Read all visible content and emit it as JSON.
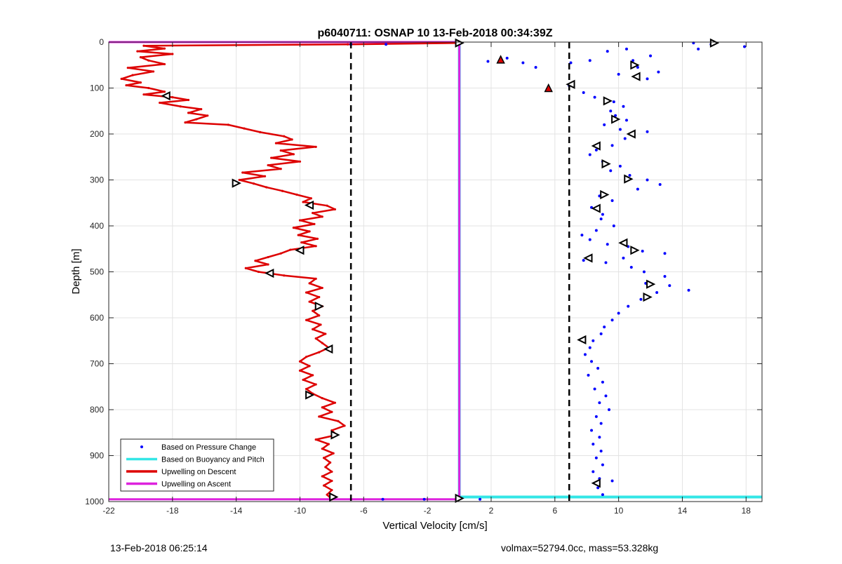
{
  "chart_data": {
    "type": "scatter",
    "title": "p6040711: OSNAP 10 13-Feb-2018 00:34:39Z",
    "xlabel": "Vertical Velocity [cm/s]",
    "ylabel": "Depth [m]",
    "xlim": [
      -22,
      19
    ],
    "ylim": [
      0,
      1000
    ],
    "y_reversed": true,
    "grid": true,
    "xticks": [
      -22,
      -18,
      -14,
      -10,
      -6,
      -2,
      2,
      6,
      10,
      14,
      18
    ],
    "yticks": [
      0,
      100,
      200,
      300,
      400,
      500,
      600,
      700,
      800,
      900,
      1000
    ],
    "legend_position": "bottom-left",
    "reference_lines_x": [
      -6.8,
      6.9
    ],
    "series": [
      {
        "name": "Based on Pressure Change",
        "color": "#0000ff",
        "style": "dots",
        "points": [
          [
            17.9,
            10
          ],
          [
            15.0,
            15
          ],
          [
            15.8,
            5
          ],
          [
            14.7,
            2
          ],
          [
            10.5,
            15
          ],
          [
            12.0,
            30
          ],
          [
            10.9,
            40
          ],
          [
            11.2,
            55
          ],
          [
            12.5,
            65
          ],
          [
            10.0,
            70
          ],
          [
            11.8,
            80
          ],
          [
            9.3,
            20
          ],
          [
            8.2,
            40
          ],
          [
            7.0,
            45
          ],
          [
            4.0,
            45
          ],
          [
            1.8,
            42
          ],
          [
            3.0,
            35
          ],
          [
            4.8,
            55
          ],
          [
            6.9,
            95
          ],
          [
            7.8,
            110
          ],
          [
            8.5,
            120
          ],
          [
            9.7,
            130
          ],
          [
            10.3,
            140
          ],
          [
            9.5,
            150
          ],
          [
            9.8,
            160
          ],
          [
            10.5,
            170
          ],
          [
            9.1,
            180
          ],
          [
            10.1,
            190
          ],
          [
            11.8,
            195
          ],
          [
            10.4,
            210
          ],
          [
            9.6,
            225
          ],
          [
            8.6,
            235
          ],
          [
            8.2,
            245
          ],
          [
            9.0,
            260
          ],
          [
            10.1,
            270
          ],
          [
            9.5,
            280
          ],
          [
            10.7,
            290
          ],
          [
            11.8,
            300
          ],
          [
            12.6,
            310
          ],
          [
            11.2,
            320
          ],
          [
            8.8,
            335
          ],
          [
            9.6,
            345
          ],
          [
            8.3,
            360
          ],
          [
            9.0,
            375
          ],
          [
            8.9,
            385
          ],
          [
            9.7,
            400
          ],
          [
            8.6,
            410
          ],
          [
            7.7,
            420
          ],
          [
            8.2,
            430
          ],
          [
            9.3,
            440
          ],
          [
            10.6,
            445
          ],
          [
            11.5,
            455
          ],
          [
            12.9,
            460
          ],
          [
            10.3,
            470
          ],
          [
            7.8,
            475
          ],
          [
            9.2,
            480
          ],
          [
            10.8,
            490
          ],
          [
            11.6,
            500
          ],
          [
            12.9,
            510
          ],
          [
            11.7,
            525
          ],
          [
            13.2,
            530
          ],
          [
            14.4,
            540
          ],
          [
            12.4,
            545
          ],
          [
            11.4,
            560
          ],
          [
            10.6,
            575
          ],
          [
            10.0,
            590
          ],
          [
            9.6,
            605
          ],
          [
            9.1,
            620
          ],
          [
            8.9,
            635
          ],
          [
            8.4,
            650
          ],
          [
            8.2,
            665
          ],
          [
            7.9,
            680
          ],
          [
            8.3,
            695
          ],
          [
            8.7,
            710
          ],
          [
            8.1,
            725
          ],
          [
            9.0,
            740
          ],
          [
            8.5,
            755
          ],
          [
            9.2,
            770
          ],
          [
            8.8,
            785
          ],
          [
            9.4,
            800
          ],
          [
            8.6,
            815
          ],
          [
            8.9,
            830
          ],
          [
            8.3,
            845
          ],
          [
            8.8,
            860
          ],
          [
            8.4,
            875
          ],
          [
            8.9,
            890
          ],
          [
            8.6,
            905
          ],
          [
            9.0,
            920
          ],
          [
            8.4,
            935
          ],
          [
            8.8,
            950
          ],
          [
            9.6,
            955
          ],
          [
            8.7,
            970
          ],
          [
            9.0,
            985
          ],
          [
            1.3,
            995
          ],
          [
            -2.2,
            995
          ],
          [
            -4.8,
            995
          ],
          [
            -4.6,
            5
          ],
          [
            -6.8,
            5
          ]
        ]
      },
      {
        "name": "Based on Buoyancy and Pitch",
        "color": "#33e6e6",
        "style": "line",
        "points": [
          [
            0,
            0
          ],
          [
            0,
            990
          ],
          [
            19,
            990
          ]
        ]
      },
      {
        "name": "Upwelling on Descent",
        "color": "#dd0000",
        "style": "line",
        "points": [
          [
            -0.1,
            2
          ],
          [
            -7,
            5
          ],
          [
            -19.8,
            8
          ],
          [
            -18.5,
            14
          ],
          [
            -20.2,
            20
          ],
          [
            -18.0,
            26
          ],
          [
            -20.0,
            33
          ],
          [
            -19.5,
            40
          ],
          [
            -18.5,
            48
          ],
          [
            -20.8,
            56
          ],
          [
            -19.2,
            64
          ],
          [
            -20.5,
            72
          ],
          [
            -21.2,
            80
          ],
          [
            -20.0,
            88
          ],
          [
            -20.9,
            94
          ],
          [
            -19.5,
            100
          ],
          [
            -18.5,
            108
          ],
          [
            -19.8,
            114
          ],
          [
            -18.0,
            120
          ],
          [
            -17.0,
            126
          ],
          [
            -18.8,
            132
          ],
          [
            -17.5,
            140
          ],
          [
            -16.2,
            146
          ],
          [
            -17.0,
            154
          ],
          [
            -15.8,
            160
          ],
          [
            -16.5,
            168
          ],
          [
            -17.2,
            175
          ],
          [
            -14.5,
            180
          ],
          [
            -13.5,
            188
          ],
          [
            -12.5,
            196
          ],
          [
            -11.0,
            205
          ],
          [
            -10.5,
            212
          ],
          [
            -11.5,
            220
          ],
          [
            -9.0,
            228
          ],
          [
            -11.2,
            236
          ],
          [
            -10.4,
            244
          ],
          [
            -11.8,
            252
          ],
          [
            -10.0,
            260
          ],
          [
            -12.0,
            268
          ],
          [
            -11.2,
            276
          ],
          [
            -13.6,
            284
          ],
          [
            -12.2,
            292
          ],
          [
            -13.8,
            300
          ],
          [
            -12.9,
            308
          ],
          [
            -12.1,
            316
          ],
          [
            -11.1,
            324
          ],
          [
            -10.2,
            332
          ],
          [
            -9.3,
            340
          ],
          [
            -9.8,
            348
          ],
          [
            -8.3,
            356
          ],
          [
            -7.8,
            364
          ],
          [
            -9.2,
            372
          ],
          [
            -8.6,
            380
          ],
          [
            -10.0,
            388
          ],
          [
            -9.1,
            396
          ],
          [
            -10.4,
            404
          ],
          [
            -9.4,
            412
          ],
          [
            -10.1,
            420
          ],
          [
            -8.9,
            428
          ],
          [
            -9.9,
            436
          ],
          [
            -9.0,
            444
          ],
          [
            -10.6,
            452
          ],
          [
            -11.2,
            460
          ],
          [
            -12.0,
            468
          ],
          [
            -12.8,
            476
          ],
          [
            -12.0,
            484
          ],
          [
            -13.4,
            492
          ],
          [
            -12.6,
            500
          ],
          [
            -11.0,
            508
          ],
          [
            -9.0,
            515
          ],
          [
            -9.4,
            525
          ],
          [
            -8.6,
            535
          ],
          [
            -9.6,
            545
          ],
          [
            -8.8,
            555
          ],
          [
            -9.4,
            565
          ],
          [
            -8.6,
            575
          ],
          [
            -9.2,
            585
          ],
          [
            -8.8,
            595
          ],
          [
            -9.6,
            605
          ],
          [
            -8.7,
            615
          ],
          [
            -9.2,
            625
          ],
          [
            -8.4,
            635
          ],
          [
            -9.0,
            645
          ],
          [
            -8.6,
            655
          ],
          [
            -8.2,
            665
          ],
          [
            -8.8,
            675
          ],
          [
            -9.6,
            685
          ],
          [
            -10.0,
            695
          ],
          [
            -9.4,
            705
          ],
          [
            -10.0,
            715
          ],
          [
            -9.2,
            725
          ],
          [
            -9.8,
            735
          ],
          [
            -9.0,
            745
          ],
          [
            -9.6,
            755
          ],
          [
            -9.2,
            765
          ],
          [
            -8.6,
            775
          ],
          [
            -7.8,
            785
          ],
          [
            -8.6,
            795
          ],
          [
            -8.0,
            805
          ],
          [
            -8.8,
            815
          ],
          [
            -7.6,
            825
          ],
          [
            -7.2,
            835
          ],
          [
            -8.0,
            845
          ],
          [
            -7.7,
            855
          ],
          [
            -9.0,
            865
          ],
          [
            -8.2,
            875
          ],
          [
            -8.6,
            885
          ],
          [
            -7.9,
            895
          ],
          [
            -8.5,
            905
          ],
          [
            -8.1,
            915
          ],
          [
            -8.4,
            925
          ],
          [
            -8.0,
            935
          ],
          [
            -8.6,
            945
          ],
          [
            -8.0,
            955
          ],
          [
            -8.5,
            965
          ],
          [
            -8.0,
            975
          ],
          [
            -8.3,
            985
          ],
          [
            -8.0,
            995
          ]
        ]
      },
      {
        "name": "Upwelling on Ascent",
        "color": "#dd22dd",
        "style": "line",
        "points": [
          [
            -22,
            0
          ],
          [
            0,
            0
          ],
          [
            0,
            995
          ],
          [
            -22,
            995
          ]
        ]
      }
    ],
    "markers": [
      {
        "x": 16.0,
        "y": 2,
        "dir": "right"
      },
      {
        "x": 11.0,
        "y": 50,
        "dir": "right"
      },
      {
        "x": 11.1,
        "y": 75,
        "dir": "left"
      },
      {
        "x": 7.0,
        "y": 92,
        "dir": "left"
      },
      {
        "x": 9.3,
        "y": 128,
        "dir": "right"
      },
      {
        "x": 9.8,
        "y": 168,
        "dir": "right"
      },
      {
        "x": 10.8,
        "y": 200,
        "dir": "left"
      },
      {
        "x": 8.6,
        "y": 226,
        "dir": "left"
      },
      {
        "x": 9.2,
        "y": 265,
        "dir": "right"
      },
      {
        "x": 10.6,
        "y": 298,
        "dir": "right"
      },
      {
        "x": 9.1,
        "y": 332,
        "dir": "right"
      },
      {
        "x": 8.6,
        "y": 362,
        "dir": "left"
      },
      {
        "x": 10.3,
        "y": 437,
        "dir": "left"
      },
      {
        "x": 11.0,
        "y": 453,
        "dir": "right"
      },
      {
        "x": 8.1,
        "y": 470,
        "dir": "left"
      },
      {
        "x": 12.0,
        "y": 527,
        "dir": "right"
      },
      {
        "x": 11.8,
        "y": 555,
        "dir": "right"
      },
      {
        "x": 7.7,
        "y": 648,
        "dir": "left"
      },
      {
        "x": 8.6,
        "y": 960,
        "dir": "left"
      },
      {
        "x": -18.4,
        "y": 117,
        "dir": "left"
      },
      {
        "x": -14.0,
        "y": 307,
        "dir": "right"
      },
      {
        "x": -9.4,
        "y": 355,
        "dir": "left"
      },
      {
        "x": -10.0,
        "y": 453,
        "dir": "left"
      },
      {
        "x": -11.9,
        "y": 503,
        "dir": "left"
      },
      {
        "x": -8.8,
        "y": 575,
        "dir": "right"
      },
      {
        "x": -8.2,
        "y": 668,
        "dir": "left"
      },
      {
        "x": -9.4,
        "y": 768,
        "dir": "right"
      },
      {
        "x": -7.8,
        "y": 855,
        "dir": "right"
      },
      {
        "x": -7.9,
        "y": 990,
        "dir": "right"
      },
      {
        "x": 0.0,
        "y": 2,
        "dir": "right"
      },
      {
        "x": 0.0,
        "y": 993,
        "dir": "right"
      }
    ],
    "red_filled_markers": [
      {
        "x": 2.6,
        "y": 38
      },
      {
        "x": 5.6,
        "y": 100
      }
    ]
  },
  "footer": {
    "left": "13-Feb-2018 06:25:14",
    "right": "volmax=52794.0cc, mass=53.328kg"
  }
}
